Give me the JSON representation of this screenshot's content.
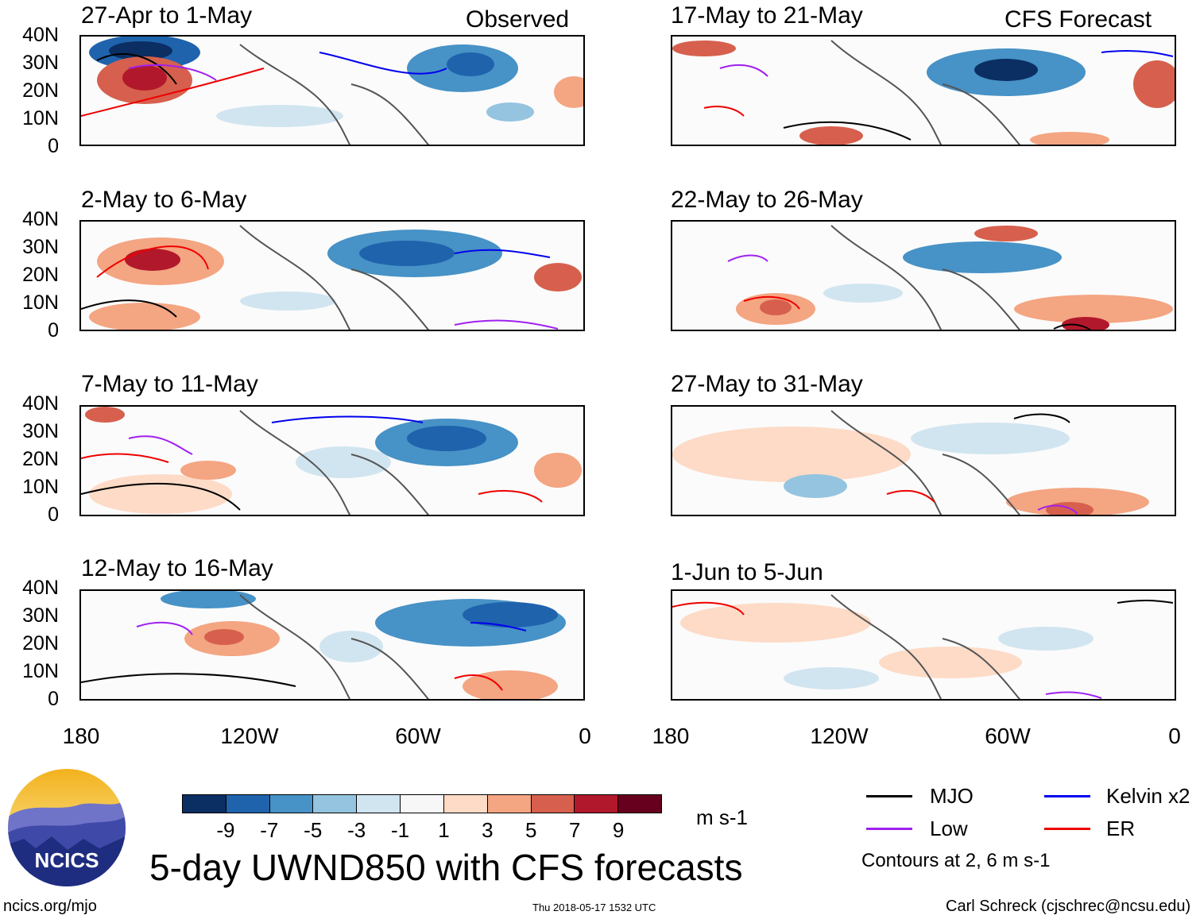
{
  "columns": {
    "left_title": "Observed",
    "right_title": "CFS Forecast"
  },
  "panels": [
    {
      "title": "27-Apr to 1-May",
      "col": "left"
    },
    {
      "title": "2-May to 6-May",
      "col": "left"
    },
    {
      "title": "7-May to 11-May",
      "col": "left"
    },
    {
      "title": "12-May to 16-May",
      "col": "left"
    },
    {
      "title": "17-May to 21-May",
      "col": "right"
    },
    {
      "title": "22-May to 26-May",
      "col": "right"
    },
    {
      "title": "27-May to 31-May",
      "col": "right"
    },
    {
      "title": "1-Jun to 5-Jun",
      "col": "right"
    }
  ],
  "axes": {
    "lat_labels": [
      "40N",
      "30N",
      "20N",
      "10N",
      "0"
    ],
    "lon_labels": [
      "180",
      "120W",
      "60W",
      "0"
    ]
  },
  "colorbar": {
    "labels": [
      "-9",
      "-7",
      "-5",
      "-3",
      "-1",
      "1",
      "3",
      "5",
      "7",
      "9"
    ],
    "colors": [
      "#0b2e63",
      "#1f63ad",
      "#4792c6",
      "#94c4df",
      "#d1e5f0",
      "#f7f7f7",
      "#fddbc7",
      "#f4a582",
      "#d6604d",
      "#b2182b",
      "#67001f"
    ],
    "units": "m s-1"
  },
  "legend": {
    "items": [
      {
        "label": "MJO",
        "color": "#000000"
      },
      {
        "label": "Kelvin x2",
        "color": "#0000ee"
      },
      {
        "label": "Low",
        "color": "#a020f0"
      },
      {
        "label": "ER",
        "color": "#ee0000"
      }
    ],
    "contour_note": "Contours at 2, 6 m s-1"
  },
  "main_title": "5-day UWND850 with CFS forecasts",
  "footer": {
    "site": "ncics.org/mjo",
    "timestamp": "Thu 2018-05-17 1532 UTC",
    "author": "Carl Schreck (cjschrec@ncsu.edu)",
    "logo_text": "NCICS"
  }
}
